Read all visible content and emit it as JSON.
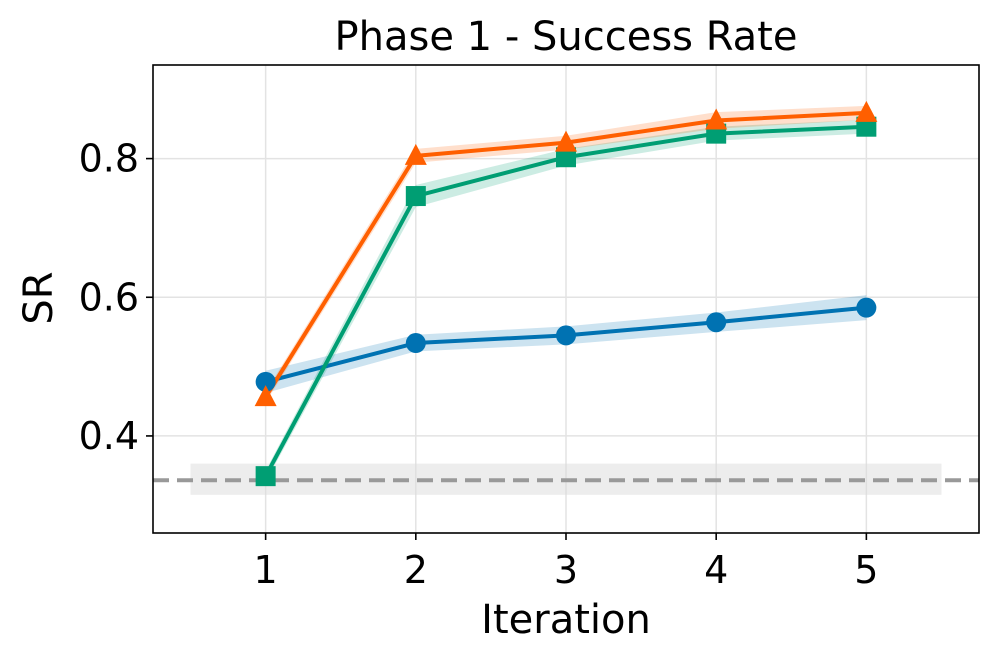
{
  "chart_data": {
    "type": "line",
    "title": "Phase 1 - Success Rate",
    "xlabel": "Iteration",
    "ylabel": "SR",
    "x": [
      1,
      2,
      3,
      4,
      5
    ],
    "xticks": [
      "1",
      "2",
      "3",
      "4",
      "5"
    ],
    "yticks": [
      "0.4",
      "0.6",
      "0.8"
    ],
    "ytick_values": [
      0.4,
      0.6,
      0.8
    ],
    "xlim": [
      0.25,
      5.75
    ],
    "ylim": [
      0.26,
      0.935
    ],
    "grid": true,
    "series": [
      {
        "name": "blue-circle",
        "color": "#0072b2",
        "marker": "circle",
        "values": [
          0.478,
          0.534,
          0.545,
          0.564,
          0.585
        ],
        "lower": [
          0.462,
          0.522,
          0.532,
          0.55,
          0.567
        ],
        "upper": [
          0.494,
          0.546,
          0.558,
          0.578,
          0.603
        ]
      },
      {
        "name": "green-square",
        "color": "#009e73",
        "marker": "square",
        "values": [
          0.342,
          0.746,
          0.802,
          0.836,
          0.846
        ],
        "lower": [
          0.334,
          0.73,
          0.79,
          0.826,
          0.836
        ],
        "upper": [
          0.35,
          0.762,
          0.814,
          0.846,
          0.856
        ]
      },
      {
        "name": "orange-triangle",
        "color": "#ff5f00",
        "marker": "triangle",
        "values": [
          0.456,
          0.804,
          0.823,
          0.855,
          0.866
        ],
        "lower": [
          0.448,
          0.794,
          0.813,
          0.843,
          0.856
        ],
        "upper": [
          0.464,
          0.814,
          0.833,
          0.867,
          0.876
        ]
      }
    ],
    "baseline": {
      "value": 0.336,
      "lower": 0.315,
      "upper": 0.36,
      "x_range": [
        0.5,
        5.5
      ],
      "color": "#999999"
    }
  }
}
